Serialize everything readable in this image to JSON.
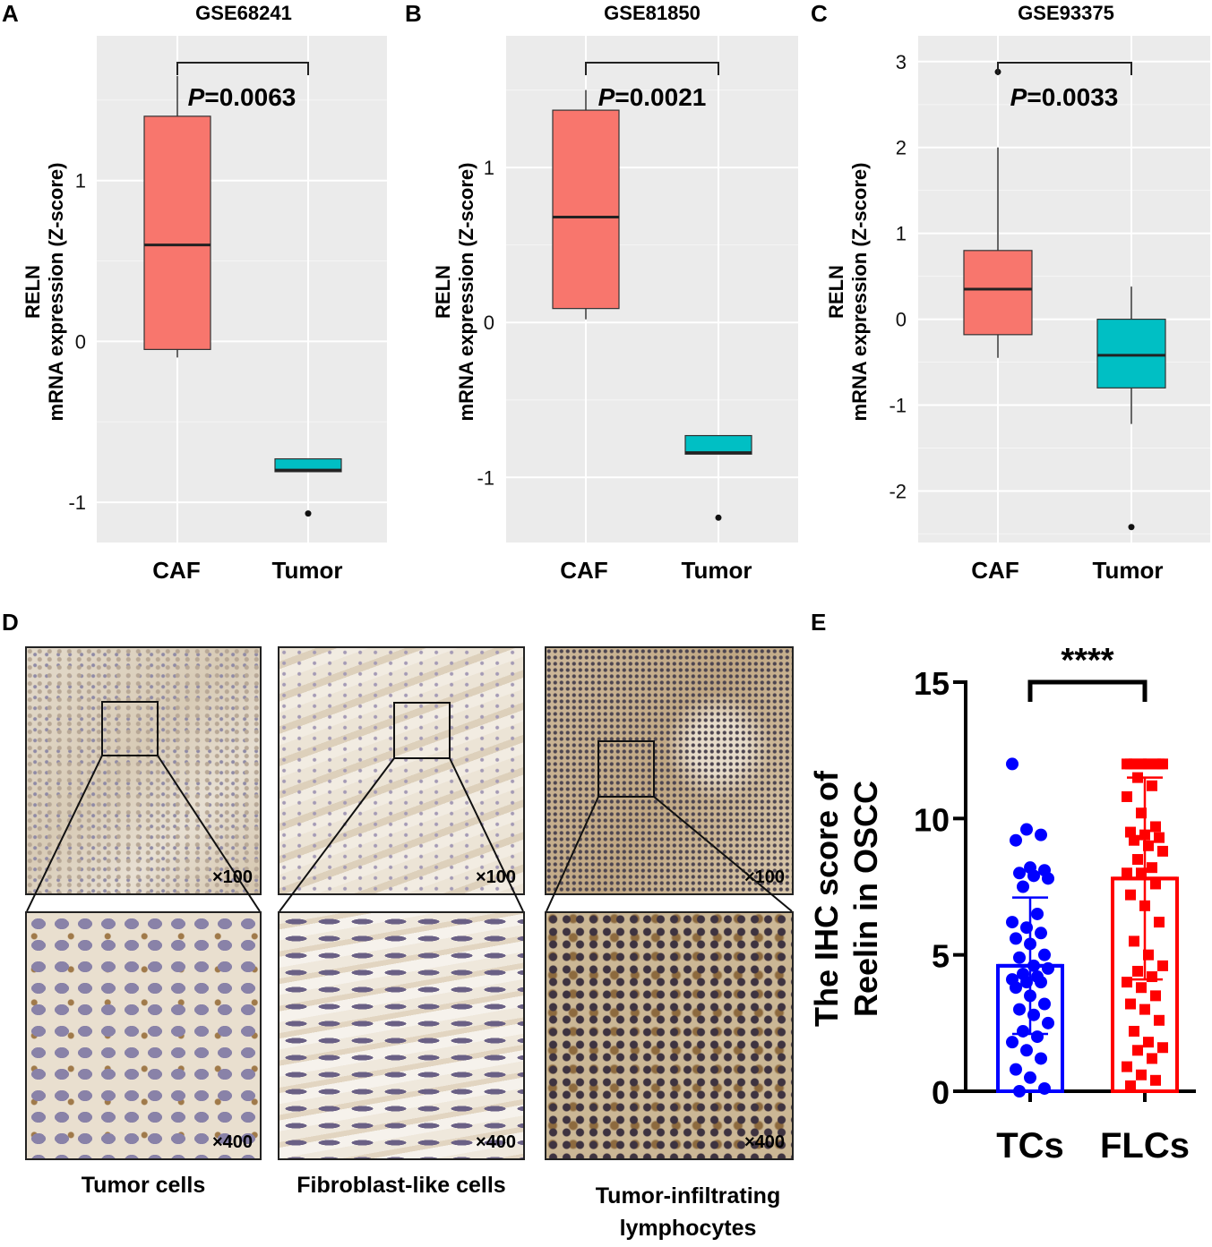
{
  "panels": {
    "A": {
      "letter": "A"
    },
    "B": {
      "letter": "B"
    },
    "C": {
      "letter": "C"
    },
    "D": {
      "letter": "D"
    },
    "E": {
      "letter": "E"
    }
  },
  "chart_data": [
    {
      "type": "box",
      "panel": "A",
      "title": "GSE68241",
      "ylabel_line1": "RELN",
      "ylabel_line2": "mRNA expression (Z-score)",
      "categories": [
        "CAF",
        "Tumor"
      ],
      "ylim": [
        -1.25,
        1.9
      ],
      "yticks": [
        -1,
        0,
        1
      ],
      "ytick_labels": [
        "-1",
        "0",
        "1"
      ],
      "p_label": "P",
      "p_value": "=0.0063",
      "boxes": [
        {
          "name": "CAF",
          "color": "#f8766d",
          "lower_whisker": -0.1,
          "q1": -0.05,
          "median": 0.6,
          "q3": 1.4,
          "upper_whisker": 1.65,
          "outliers": []
        },
        {
          "name": "Tumor",
          "color": "#00bfc4",
          "lower_whisker": -0.81,
          "q1": -0.81,
          "median": -0.8,
          "q3": -0.73,
          "upper_whisker": -0.73,
          "outliers": [
            -1.07
          ]
        }
      ]
    },
    {
      "type": "box",
      "panel": "B",
      "title": "GSE81850",
      "ylabel_line1": "RELN",
      "ylabel_line2": "mRNA expression (Z-score)",
      "categories": [
        "CAF",
        "Tumor"
      ],
      "ylim": [
        -1.42,
        1.85
      ],
      "yticks": [
        -1,
        0,
        1
      ],
      "ytick_labels": [
        "-1",
        "0",
        "1"
      ],
      "p_label": "P",
      "p_value": "=0.0021",
      "boxes": [
        {
          "name": "CAF",
          "color": "#f8766d",
          "lower_whisker": 0.02,
          "q1": 0.09,
          "median": 0.68,
          "q3": 1.37,
          "upper_whisker": 1.5,
          "outliers": []
        },
        {
          "name": "Tumor",
          "color": "#00bfc4",
          "lower_whisker": -0.85,
          "q1": -0.85,
          "median": -0.84,
          "q3": -0.73,
          "upper_whisker": -0.73,
          "outliers": [
            -1.26
          ]
        }
      ]
    },
    {
      "type": "box",
      "panel": "C",
      "title": "GSE93375",
      "ylabel_line1": "RELN",
      "ylabel_line2": "mRNA expression (Z-score)",
      "categories": [
        "CAF",
        "Tumor"
      ],
      "ylim": [
        -2.6,
        3.3
      ],
      "yticks": [
        -2,
        -1,
        0,
        1,
        2,
        3
      ],
      "ytick_labels": [
        "-2",
        "-1",
        "0",
        "1",
        "2",
        "3"
      ],
      "p_label": "P",
      "p_value": "=0.0033",
      "boxes": [
        {
          "name": "CAF",
          "color": "#f8766d",
          "lower_whisker": -0.45,
          "q1": -0.18,
          "median": 0.35,
          "q3": 0.8,
          "upper_whisker": 2.0,
          "outliers": [
            2.88
          ]
        },
        {
          "name": "Tumor",
          "color": "#00bfc4",
          "lower_whisker": -1.22,
          "q1": -0.8,
          "median": -0.42,
          "q3": 0.0,
          "upper_whisker": 0.38,
          "outliers": [
            -2.42
          ]
        }
      ]
    },
    {
      "type": "bar",
      "panel": "E",
      "ylabel_line1": "The IHC score of",
      "ylabel_line2": "Reelin in OSCC",
      "categories": [
        "TCs",
        "FLCs"
      ],
      "ylim": [
        0,
        15
      ],
      "yticks": [
        0,
        5,
        10,
        15
      ],
      "ytick_labels": [
        "0",
        "5",
        "10",
        "15"
      ],
      "significance": "****",
      "series": [
        {
          "name": "TCs",
          "color": "#0000ff",
          "mean": 4.6,
          "sd_low": 2.1,
          "sd_high": 7.1,
          "points": [
            12,
            9.6,
            9.4,
            9.2,
            8.2,
            8.1,
            8,
            7.9,
            7.8,
            7.5,
            6.5,
            6.2,
            6,
            5.8,
            5.6,
            5.4,
            5,
            4.9,
            4.6,
            4.5,
            4.3,
            4.2,
            4.1,
            4,
            4,
            3.8,
            3.5,
            3.2,
            3,
            2.8,
            2.5,
            2.2,
            2,
            1.8,
            1.5,
            1.2,
            0.8,
            0.5,
            0.1,
            0
          ]
        },
        {
          "name": "FLCs",
          "color": "#ff0000",
          "mean": 7.8,
          "sd_low": 4.1,
          "sd_high": 11.5,
          "points": [
            12,
            12,
            12,
            12,
            12,
            12,
            12,
            12,
            12,
            11.5,
            11.2,
            10.8,
            10.2,
            9.7,
            9.5,
            9.4,
            9.3,
            9.2,
            9,
            8.8,
            8.5,
            8.2,
            8,
            8,
            7.6,
            7.2,
            6.8,
            6.2,
            5.5,
            5,
            4.6,
            4.4,
            4.2,
            4,
            3.8,
            3.5,
            3.2,
            3,
            2.6,
            2.2,
            1.8,
            1.6,
            1.5,
            1.2,
            0.9,
            0.6,
            0.4,
            0.2
          ]
        }
      ]
    }
  ],
  "micrographs": [
    {
      "low_mag": "×100",
      "high_mag": "×400",
      "caption_line1": "Tumor cells",
      "caption_line2": ""
    },
    {
      "low_mag": "×100",
      "high_mag": "×400",
      "caption_line1": "Fibroblast-like cells",
      "caption_line2": ""
    },
    {
      "low_mag": "×100",
      "high_mag": "×400",
      "caption_line1": "Tumor-infiltrating",
      "caption_line2": "lymphocytes"
    }
  ]
}
